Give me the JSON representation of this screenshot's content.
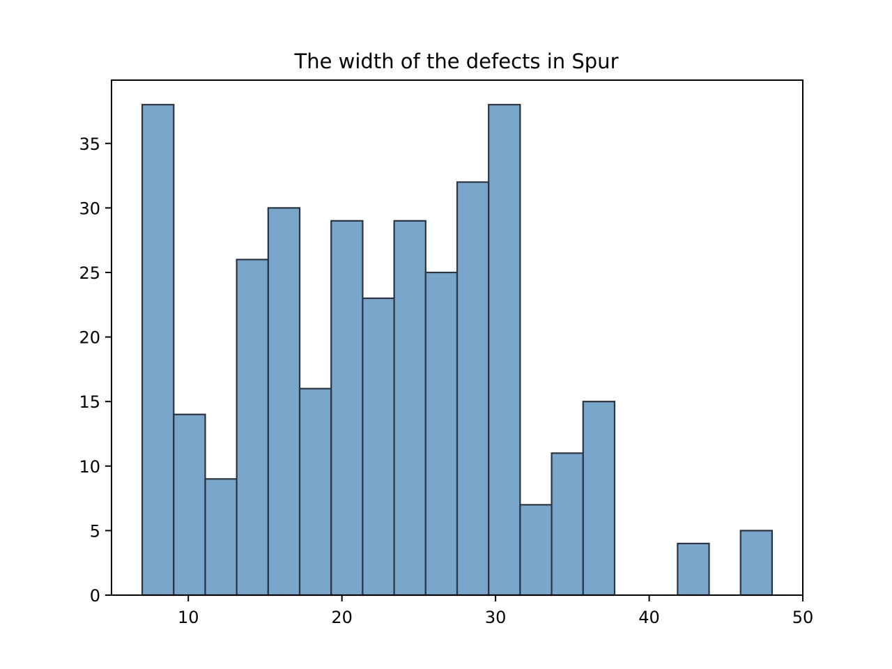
{
  "chart_data": {
    "type": "bar",
    "subtype": "histogram",
    "title": "The width of the defects in Spur",
    "xlabel": "",
    "ylabel": "",
    "xlim": [
      5,
      50
    ],
    "ylim": [
      0,
      39.9
    ],
    "xticks": [
      10,
      20,
      30,
      40,
      50
    ],
    "yticks": [
      0,
      5,
      10,
      15,
      20,
      25,
      30,
      35
    ],
    "bin_edges": [
      7.0,
      9.05,
      11.1,
      13.15,
      15.2,
      17.25,
      19.3,
      21.35,
      23.4,
      25.45,
      27.5,
      29.55,
      31.6,
      33.65,
      35.7,
      37.75,
      39.8,
      41.85,
      43.9,
      45.95,
      48.0
    ],
    "counts": [
      38,
      14,
      9,
      26,
      30,
      16,
      29,
      23,
      29,
      25,
      32,
      38,
      7,
      11,
      15,
      0,
      0,
      4,
      0,
      5
    ],
    "grid": false,
    "legend": "none",
    "colors": {
      "bar_fill": "#7ba6cb",
      "bar_edge": "#2b3440",
      "axes": "#000000",
      "background": "#ffffff"
    }
  }
}
